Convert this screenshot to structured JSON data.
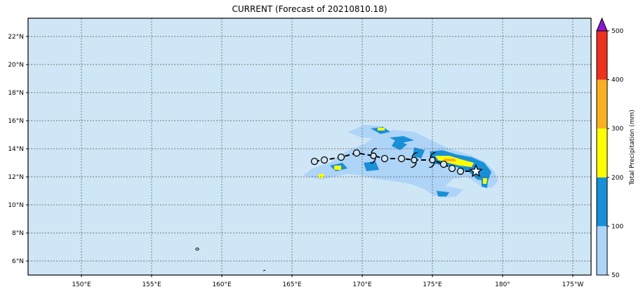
{
  "title": "CURRENT (Forecast of 20210810.18)",
  "map": {
    "ocean_color": "#cfe6f6",
    "grid_color": "#555555",
    "lat_labels": [
      "22°N",
      "20°N",
      "18°N",
      "16°N",
      "14°N",
      "12°N",
      "10°N",
      "8°N",
      "6°N"
    ],
    "lat_values": [
      22,
      20,
      18,
      16,
      14,
      12,
      10,
      8,
      6
    ],
    "lon_labels": [
      "150°E",
      "155°E",
      "160°E",
      "165°E",
      "170°E",
      "175°E",
      "180°",
      "175°W"
    ],
    "lon_values": [
      150,
      155,
      160,
      165,
      170,
      175,
      180,
      185
    ],
    "lon_range": [
      146.2,
      186.3
    ],
    "lat_range": [
      5.0,
      23.3
    ]
  },
  "track": {
    "open_circle_positions": [
      [
        166.6,
        13.1
      ],
      [
        167.3,
        13.2
      ],
      [
        168.5,
        13.4
      ],
      [
        169.6,
        13.7
      ],
      [
        171.6,
        13.3
      ],
      [
        172.8,
        13.3
      ],
      [
        175.8,
        12.9
      ],
      [
        176.4,
        12.6
      ],
      [
        177.0,
        12.4
      ]
    ],
    "hurricane_positions": [
      [
        170.8,
        13.5
      ],
      [
        173.7,
        13.2
      ],
      [
        175.0,
        13.2
      ]
    ],
    "current_position": [
      178.1,
      12.4
    ]
  },
  "colorbar": {
    "label": "Total Precipitation (mm)",
    "ticks": [
      "50",
      "100",
      "200",
      "300",
      "400",
      "500"
    ],
    "colors": [
      "#aed4f7",
      "#1890d8",
      "#ffff00",
      "#f8b020",
      "#ee3020"
    ],
    "extend_color": "#8a18d0"
  }
}
